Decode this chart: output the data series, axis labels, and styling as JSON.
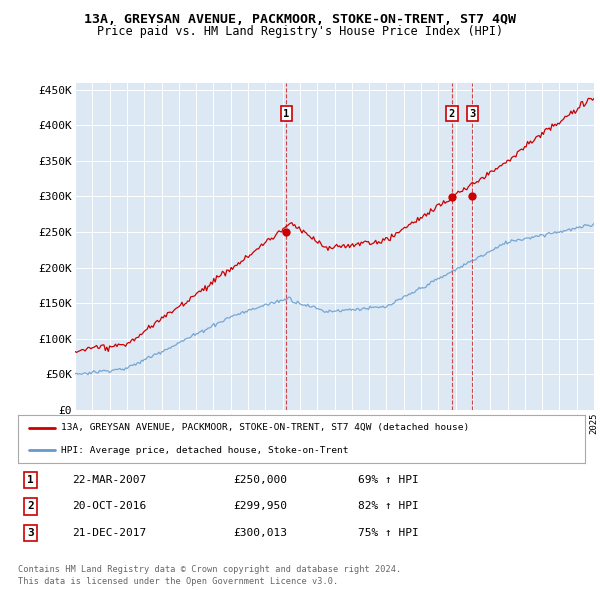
{
  "title": "13A, GREYSAN AVENUE, PACKMOOR, STOKE-ON-TRENT, ST7 4QW",
  "subtitle": "Price paid vs. HM Land Registry's House Price Index (HPI)",
  "legend_line1": "13A, GREYSAN AVENUE, PACKMOOR, STOKE-ON-TRENT, ST7 4QW (detached house)",
  "legend_line2": "HPI: Average price, detached house, Stoke-on-Trent",
  "footnote1": "Contains HM Land Registry data © Crown copyright and database right 2024.",
  "footnote2": "This data is licensed under the Open Government Licence v3.0.",
  "transactions": [
    {
      "num": 1,
      "date": "22-MAR-2007",
      "price": "£250,000",
      "hpi_pct": "69% ↑ HPI"
    },
    {
      "num": 2,
      "date": "20-OCT-2016",
      "price": "£299,950",
      "hpi_pct": "82% ↑ HPI"
    },
    {
      "num": 3,
      "date": "21-DEC-2017",
      "price": "£300,013",
      "hpi_pct": "75% ↑ HPI"
    }
  ],
  "transaction_years": [
    2007.22,
    2016.79,
    2017.97
  ],
  "transaction_prices": [
    250000,
    299950,
    300013
  ],
  "ylim": [
    0,
    460000
  ],
  "yticks": [
    0,
    50000,
    100000,
    150000,
    200000,
    250000,
    300000,
    350000,
    400000,
    450000
  ],
  "background_color": "#dce9f5",
  "red_color": "#cc0000",
  "blue_color": "#6699cc",
  "grid_color": "#ffffff",
  "xstart": 1995,
  "xend": 2025
}
